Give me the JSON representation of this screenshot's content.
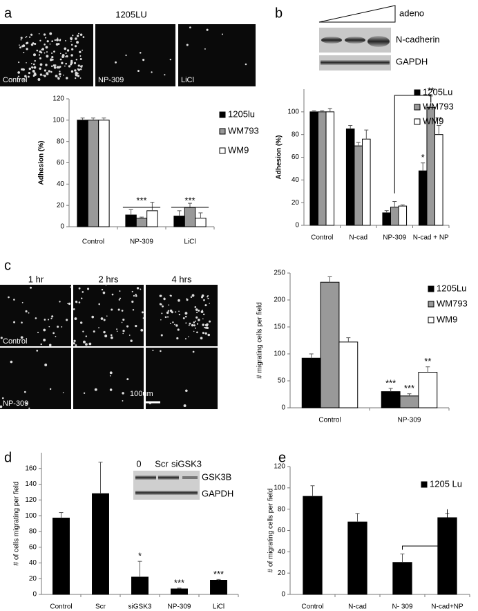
{
  "panels": {
    "letters": [
      "a",
      "b",
      "c",
      "d",
      "e"
    ],
    "a": {
      "title": "1205LU",
      "images": [
        "Control",
        "NP-309",
        "LiCl"
      ]
    },
    "b": {
      "blot_labels": [
        "adeno",
        "N-cadherin",
        "GAPDH"
      ]
    },
    "c": {
      "columns": [
        "1 hr",
        "2 hrs",
        "4 hrs"
      ],
      "rows": [
        "Control",
        "NP-309"
      ],
      "scale_bar": "100um"
    },
    "d": {
      "lanes": [
        "0",
        "Scr",
        "siGSK3"
      ],
      "blot_labels": [
        "GSK3B",
        "GAPDH"
      ]
    }
  },
  "chart_data": [
    {
      "type": "bar",
      "ylabel": "Adhesion (%)",
      "categories": [
        "Control",
        "NP-309",
        "LiCl"
      ],
      "series": [
        {
          "name": "1205lu",
          "color": "#000000",
          "values": [
            100,
            11,
            10
          ],
          "errors": [
            2,
            5,
            5
          ]
        },
        {
          "name": "WM793",
          "color": "#999999",
          "values": [
            100,
            8,
            18
          ],
          "errors": [
            2,
            1,
            4
          ]
        },
        {
          "name": "WM9",
          "color": "#ffffff",
          "values": [
            100,
            15,
            8
          ],
          "errors": [
            2,
            8,
            5
          ]
        }
      ],
      "ylim": [
        0,
        120
      ],
      "yticks": [
        0,
        20,
        40,
        60,
        80,
        100,
        120
      ],
      "annotations": [
        "***",
        "***"
      ]
    },
    {
      "type": "bar",
      "ylabel": "Adhesion (%)",
      "categories": [
        "Control",
        "N-cad",
        "NP-309",
        "N-cad + NP"
      ],
      "series": [
        {
          "name": "1205Lu",
          "color": "#000000",
          "values": [
            100,
            85,
            11,
            48
          ],
          "errors": [
            1,
            3,
            2,
            7
          ]
        },
        {
          "name": "WM793",
          "color": "#999999",
          "values": [
            100,
            70,
            16,
            104
          ],
          "errors": [
            1,
            3,
            5,
            10
          ]
        },
        {
          "name": "WM9",
          "color": "#ffffff",
          "values": [
            100,
            76,
            17,
            80
          ],
          "errors": [
            3,
            8,
            1,
            8
          ]
        }
      ],
      "ylim": [
        0,
        120
      ],
      "yticks": [
        0,
        20,
        40,
        60,
        80,
        100
      ],
      "annotations": [
        "*",
        "**",
        "**"
      ]
    },
    {
      "type": "bar",
      "ylabel": "# migrating cells per field",
      "categories": [
        "Control",
        "NP-309"
      ],
      "series": [
        {
          "name": "1205Lu",
          "color": "#000000",
          "values": [
            92,
            30
          ],
          "errors": [
            8,
            6
          ]
        },
        {
          "name": "WM793",
          "color": "#999999",
          "values": [
            233,
            22
          ],
          "errors": [
            10,
            4
          ]
        },
        {
          "name": "WM9",
          "color": "#ffffff",
          "values": [
            122,
            66
          ],
          "errors": [
            8,
            10
          ]
        }
      ],
      "ylim": [
        0,
        250
      ],
      "yticks": [
        0,
        50,
        100,
        150,
        200,
        250
      ],
      "annotations": [
        "***",
        "***",
        "**"
      ]
    },
    {
      "type": "bar",
      "ylabel": "# of cells migrating per field",
      "categories": [
        "Control",
        "Scr",
        "siGSK3",
        "NP-309",
        "LiCl"
      ],
      "series": [
        {
          "color": "#000000",
          "values": [
            97,
            128,
            22,
            7,
            18
          ],
          "errors": [
            7,
            40,
            20,
            1,
            1
          ]
        }
      ],
      "ylim": [
        0,
        180
      ],
      "yticks": [
        0,
        20,
        40,
        60,
        80,
        100,
        120,
        140,
        160
      ],
      "annotations": [
        "*",
        "***",
        "***"
      ]
    },
    {
      "type": "bar",
      "ylabel": "# of migrating cells per field",
      "categories": [
        "Control",
        "N-cad",
        "N- 309",
        "N-cad+NP"
      ],
      "series": [
        {
          "name": "1205 Lu",
          "color": "#000000",
          "values": [
            92,
            68,
            30,
            72
          ],
          "errors": [
            10,
            8,
            8,
            4
          ]
        }
      ],
      "ylim": [
        0,
        120
      ],
      "yticks": [
        0,
        20,
        40,
        60,
        80,
        100,
        120
      ],
      "annotations": [
        "*"
      ]
    }
  ]
}
